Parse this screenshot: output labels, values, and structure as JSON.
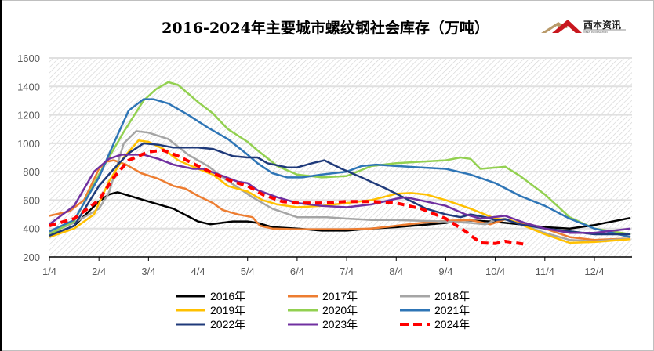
{
  "chart_data": {
    "type": "line",
    "title": "2016-2024年主要城市螺纹钢社会库存（万吨）",
    "xlabel": "",
    "ylabel": "",
    "ylim": [
      200,
      1600
    ],
    "yticks": [
      200,
      400,
      600,
      800,
      1000,
      1200,
      1400,
      1600
    ],
    "xlim": [
      0,
      11.73
    ],
    "x_unit": "months since 1/4",
    "xticks": [
      "1/4",
      "2/4",
      "3/4",
      "4/4",
      "5/4",
      "6/4",
      "7/4",
      "8/4",
      "9/4",
      "10/4",
      "11/4",
      "12/4"
    ],
    "grid": true,
    "legend_position": "bottom",
    "series": [
      {
        "name": "2016年",
        "color": "#000000",
        "dashed": false,
        "points": [
          [
            0,
            350
          ],
          [
            0.5,
            420
          ],
          [
            1.0,
            590
          ],
          [
            1.2,
            640
          ],
          [
            1.38,
            655
          ],
          [
            2,
            590
          ],
          [
            2.5,
            540
          ],
          [
            3,
            450
          ],
          [
            3.25,
            430
          ],
          [
            3.7,
            450
          ],
          [
            4,
            450
          ],
          [
            4.2,
            440
          ],
          [
            4.5,
            410
          ],
          [
            5,
            400
          ],
          [
            5.5,
            385
          ],
          [
            6,
            385
          ],
          [
            6.5,
            400
          ],
          [
            7,
            410
          ],
          [
            7.5,
            425
          ],
          [
            8,
            440
          ],
          [
            8.3,
            460
          ],
          [
            8.9,
            450
          ],
          [
            9.5,
            430
          ],
          [
            10,
            410
          ],
          [
            10.5,
            400
          ],
          [
            11,
            425
          ],
          [
            11.73,
            475
          ]
        ]
      },
      {
        "name": "2017年",
        "color": "#ED7D31",
        "dashed": false,
        "points": [
          [
            0,
            490
          ],
          [
            0.4,
            520
          ],
          [
            0.7,
            600
          ],
          [
            1.0,
            820
          ],
          [
            1.15,
            870
          ],
          [
            1.3,
            880
          ],
          [
            1.55,
            850
          ],
          [
            1.85,
            790
          ],
          [
            2.2,
            750
          ],
          [
            2.5,
            700
          ],
          [
            2.75,
            680
          ],
          [
            3,
            630
          ],
          [
            3.3,
            580
          ],
          [
            3.5,
            530
          ],
          [
            3.8,
            500
          ],
          [
            4.1,
            480
          ],
          [
            4.25,
            420
          ],
          [
            4.5,
            400
          ],
          [
            5,
            395
          ],
          [
            6,
            395
          ],
          [
            6.5,
            400
          ],
          [
            7,
            420
          ],
          [
            7.5,
            440
          ],
          [
            8,
            455
          ],
          [
            8.5,
            460
          ],
          [
            8.9,
            430
          ],
          [
            9.2,
            465
          ],
          [
            9.5,
            440
          ],
          [
            10,
            400
          ],
          [
            10.5,
            340
          ],
          [
            11,
            320
          ],
          [
            11.73,
            330
          ]
        ]
      },
      {
        "name": "2018年",
        "color": "#A5A5A5",
        "dashed": false,
        "points": [
          [
            0,
            370
          ],
          [
            0.5,
            440
          ],
          [
            1.0,
            540
          ],
          [
            1.2,
            650
          ],
          [
            1.5,
            1000
          ],
          [
            1.75,
            1085
          ],
          [
            2,
            1075
          ],
          [
            2.4,
            1030
          ],
          [
            2.8,
            920
          ],
          [
            3.2,
            840
          ],
          [
            3.5,
            760
          ],
          [
            4.1,
            620
          ],
          [
            4.5,
            540
          ],
          [
            5,
            480
          ],
          [
            5.6,
            480
          ],
          [
            6,
            470
          ],
          [
            6.5,
            460
          ],
          [
            7,
            460
          ],
          [
            7.5,
            455
          ],
          [
            8,
            450
          ],
          [
            8.5,
            440
          ],
          [
            8.8,
            430
          ],
          [
            9.0,
            460
          ],
          [
            9.2,
            470
          ],
          [
            9.5,
            430
          ],
          [
            10,
            370
          ],
          [
            10.5,
            320
          ],
          [
            11,
            310
          ],
          [
            11.73,
            330
          ]
        ]
      },
      {
        "name": "2019年",
        "color": "#FFC000",
        "dashed": false,
        "points": [
          [
            0,
            340
          ],
          [
            0.5,
            400
          ],
          [
            0.9,
            500
          ],
          [
            1.2,
            730
          ],
          [
            1.5,
            900
          ],
          [
            1.8,
            1020
          ],
          [
            2,
            1010
          ],
          [
            2.3,
            960
          ],
          [
            2.6,
            880
          ],
          [
            3,
            820
          ],
          [
            3.3,
            780
          ],
          [
            3.6,
            700
          ],
          [
            4,
            660
          ],
          [
            4.3,
            600
          ],
          [
            4.6,
            570
          ],
          [
            5,
            550
          ],
          [
            5.5,
            560
          ],
          [
            6,
            580
          ],
          [
            6.5,
            600
          ],
          [
            7,
            645
          ],
          [
            7.3,
            650
          ],
          [
            7.6,
            640
          ],
          [
            8,
            600
          ],
          [
            8.5,
            540
          ],
          [
            9,
            470
          ],
          [
            9.3,
            460
          ],
          [
            10,
            360
          ],
          [
            10.5,
            300
          ],
          [
            11,
            305
          ],
          [
            11.73,
            325
          ]
        ]
      },
      {
        "name": "2020年",
        "color": "#92D050",
        "dashed": false,
        "points": [
          [
            0,
            360
          ],
          [
            0.5,
            450
          ],
          [
            1.0,
            780
          ],
          [
            1.5,
            1080
          ],
          [
            1.9,
            1300
          ],
          [
            2.15,
            1380
          ],
          [
            2.4,
            1430
          ],
          [
            2.6,
            1410
          ],
          [
            3,
            1290
          ],
          [
            3.3,
            1210
          ],
          [
            3.6,
            1100
          ],
          [
            4,
            1010
          ],
          [
            4.2,
            950
          ],
          [
            4.6,
            840
          ],
          [
            5,
            780
          ],
          [
            5.5,
            760
          ],
          [
            6,
            770
          ],
          [
            6.5,
            840
          ],
          [
            7,
            860
          ],
          [
            7.5,
            870
          ],
          [
            8,
            880
          ],
          [
            8.3,
            900
          ],
          [
            8.5,
            890
          ],
          [
            8.7,
            820
          ],
          [
            9.2,
            835
          ],
          [
            9.5,
            770
          ],
          [
            10,
            640
          ],
          [
            10.5,
            480
          ],
          [
            11,
            400
          ],
          [
            11.73,
            360
          ]
        ]
      },
      {
        "name": "2021年",
        "color": "#2E75B6",
        "dashed": false,
        "points": [
          [
            0,
            380
          ],
          [
            0.5,
            460
          ],
          [
            1.0,
            760
          ],
          [
            1.3,
            1000
          ],
          [
            1.6,
            1230
          ],
          [
            1.9,
            1310
          ],
          [
            2.1,
            1310
          ],
          [
            2.4,
            1280
          ],
          [
            2.8,
            1200
          ],
          [
            3.2,
            1110
          ],
          [
            3.6,
            1030
          ],
          [
            4.0,
            920
          ],
          [
            4.2,
            860
          ],
          [
            4.5,
            790
          ],
          [
            4.8,
            760
          ],
          [
            5.1,
            760
          ],
          [
            5.5,
            780
          ],
          [
            6,
            800
          ],
          [
            6.3,
            840
          ],
          [
            6.6,
            850
          ],
          [
            7,
            840
          ],
          [
            7.5,
            830
          ],
          [
            8,
            820
          ],
          [
            8.5,
            780
          ],
          [
            9,
            720
          ],
          [
            9.5,
            630
          ],
          [
            10,
            560
          ],
          [
            10.5,
            470
          ],
          [
            11,
            400
          ],
          [
            11.73,
            340
          ]
        ]
      },
      {
        "name": "2022年",
        "color": "#1F3A7A",
        "dashed": false,
        "points": [
          [
            0,
            350
          ],
          [
            0.5,
            420
          ],
          [
            1.0,
            700
          ],
          [
            1.3,
            820
          ],
          [
            1.6,
            930
          ],
          [
            1.9,
            1000
          ],
          [
            2.2,
            990
          ],
          [
            2.5,
            970
          ],
          [
            3,
            970
          ],
          [
            3.3,
            960
          ],
          [
            3.7,
            910
          ],
          [
            4,
            900
          ],
          [
            4.2,
            900
          ],
          [
            4.4,
            860
          ],
          [
            4.8,
            830
          ],
          [
            5.0,
            830
          ],
          [
            5.3,
            860
          ],
          [
            5.55,
            880
          ],
          [
            5.9,
            820
          ],
          [
            6.3,
            760
          ],
          [
            6.8,
            680
          ],
          [
            7.2,
            610
          ],
          [
            7.6,
            540
          ],
          [
            8,
            500
          ],
          [
            8.3,
            480
          ],
          [
            8.5,
            500
          ],
          [
            8.8,
            480
          ],
          [
            9,
            460
          ],
          [
            9.2,
            465
          ],
          [
            9.5,
            430
          ],
          [
            10,
            400
          ],
          [
            10.5,
            380
          ],
          [
            11,
            360
          ],
          [
            11.73,
            360
          ]
        ]
      },
      {
        "name": "2023年",
        "color": "#7030A0",
        "dashed": false,
        "points": [
          [
            0,
            430
          ],
          [
            0.5,
            560
          ],
          [
            0.9,
            800
          ],
          [
            1.2,
            890
          ],
          [
            1.45,
            920
          ],
          [
            1.9,
            920
          ],
          [
            2.2,
            890
          ],
          [
            2.5,
            850
          ],
          [
            2.9,
            820
          ],
          [
            3.1,
            820
          ],
          [
            3.5,
            770
          ],
          [
            3.8,
            730
          ],
          [
            4.0,
            720
          ],
          [
            4.2,
            670
          ],
          [
            4.6,
            620
          ],
          [
            5,
            580
          ],
          [
            5.5,
            560
          ],
          [
            6,
            550
          ],
          [
            6.5,
            570
          ],
          [
            7,
            610
          ],
          [
            7.2,
            620
          ],
          [
            7.6,
            590
          ],
          [
            8,
            560
          ],
          [
            8.4,
            500
          ],
          [
            8.7,
            470
          ],
          [
            9.2,
            490
          ],
          [
            9.6,
            440
          ],
          [
            10,
            400
          ],
          [
            10.5,
            370
          ],
          [
            11,
            370
          ],
          [
            11.73,
            400
          ]
        ]
      },
      {
        "name": "2024年",
        "color": "#FF0000",
        "dashed": true,
        "points": [
          [
            0,
            420
          ],
          [
            0.5,
            470
          ],
          [
            1.0,
            600
          ],
          [
            1.3,
            760
          ],
          [
            1.6,
            880
          ],
          [
            2,
            940
          ],
          [
            2.3,
            950
          ],
          [
            2.6,
            910
          ],
          [
            3,
            840
          ],
          [
            3.3,
            790
          ],
          [
            3.7,
            730
          ],
          [
            4,
            700
          ],
          [
            4.3,
            640
          ],
          [
            4.7,
            590
          ],
          [
            5,
            580
          ],
          [
            5.5,
            580
          ],
          [
            6,
            590
          ],
          [
            6.5,
            590
          ],
          [
            7,
            580
          ],
          [
            7.5,
            540
          ],
          [
            8,
            470
          ],
          [
            8.4,
            380
          ],
          [
            8.7,
            300
          ],
          [
            9,
            295
          ],
          [
            9.2,
            310
          ],
          [
            9.4,
            300
          ],
          [
            9.6,
            290
          ]
        ]
      }
    ]
  },
  "logo": {
    "name": "西本资讯",
    "sub": "XIBEN INFORMATION"
  }
}
